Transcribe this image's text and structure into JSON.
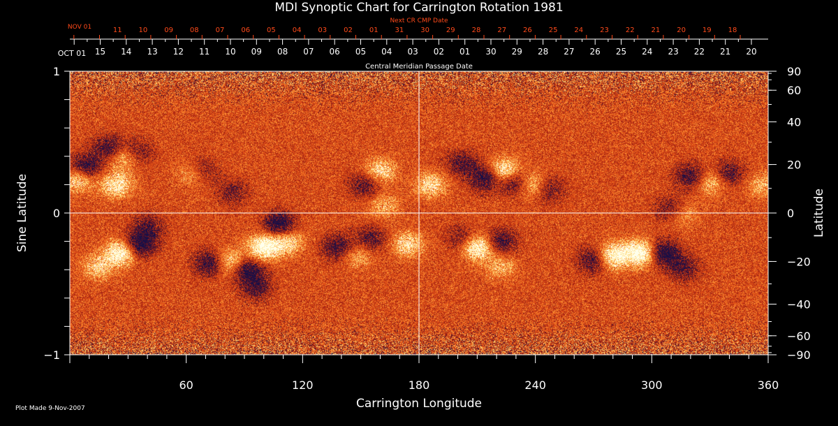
{
  "chart_data": {
    "type": "heatmap",
    "title": "MDI Synoptic Chart for Carrington Rotation 1981",
    "xlabel": "Carrington Longitude",
    "ylabel_left": "Sine Latitude",
    "ylabel_right": "Latitude",
    "xlim": [
      0,
      360
    ],
    "ylim": [
      -1,
      1
    ],
    "x_ticks": [
      "60",
      "120",
      "180",
      "240",
      "300",
      "360"
    ],
    "x_tick_values": [
      60,
      120,
      180,
      240,
      300,
      360
    ],
    "y_left_ticks": [
      "1",
      "0",
      "−1"
    ],
    "y_left_tick_values": [
      1,
      0,
      -1
    ],
    "y_right_ticks": [
      "90",
      "60",
      "40",
      "20",
      "0",
      "−20",
      "−40",
      "−60",
      "−90"
    ],
    "y_right_tick_values": [
      90,
      60,
      40,
      20,
      0,
      -20,
      -40,
      -60,
      -90
    ],
    "cmp_axis_label": "Central Meridian Passage Date",
    "cmp_dates": [
      "OCT 01",
      "15",
      "14",
      "13",
      "12",
      "11",
      "10",
      "09",
      "08",
      "07",
      "06",
      "05",
      "04",
      "03",
      "02",
      "01",
      "30",
      "29",
      "28",
      "27",
      "26",
      "25",
      "24",
      "23",
      "22",
      "21",
      "20"
    ],
    "next_cr_label": "Next CR CMP Date",
    "next_cr_dates": [
      "NOV 01",
      "11",
      "10",
      "09",
      "08",
      "07",
      "06",
      "05",
      "04",
      "03",
      "02",
      "01",
      "31",
      "30",
      "29",
      "28",
      "27",
      "26",
      "25",
      "24",
      "23",
      "22",
      "21",
      "20",
      "19",
      "18"
    ],
    "crosshair": {
      "longitude": 180,
      "sine_latitude": 0
    },
    "colors": {
      "background": "#000000",
      "field_base": "#e0501a",
      "positive": "#ffffff",
      "negative": "#14103a",
      "accent_next_cr": "#ff4a1a",
      "axis": "#ffffff"
    },
    "active_regions": [
      {
        "polarity": "positive",
        "lon": 4,
        "sinlat": 0.24,
        "strength": 0.6
      },
      {
        "polarity": "negative",
        "lon": 8,
        "sinlat": 0.33,
        "strength": 0.7
      },
      {
        "polarity": "negative",
        "lon": 20,
        "sinlat": 0.46,
        "strength": 0.6
      },
      {
        "polarity": "positive",
        "lon": 28,
        "sinlat": 0.4,
        "strength": 0.6
      },
      {
        "polarity": "positive",
        "lon": 24,
        "sinlat": 0.2,
        "strength": 0.7
      },
      {
        "polarity": "negative",
        "lon": 34,
        "sinlat": 0.43,
        "strength": 0.5
      },
      {
        "polarity": "positive",
        "lon": 26,
        "sinlat": -0.28,
        "strength": 0.9
      },
      {
        "polarity": "positive",
        "lon": 14,
        "sinlat": -0.38,
        "strength": 0.5
      },
      {
        "polarity": "negative",
        "lon": 36,
        "sinlat": -0.22,
        "strength": 0.8
      },
      {
        "polarity": "negative",
        "lon": 40,
        "sinlat": -0.1,
        "strength": 0.5
      },
      {
        "polarity": "positive",
        "lon": 63,
        "sinlat": 0.28,
        "strength": 0.4
      },
      {
        "polarity": "negative",
        "lon": 68,
        "sinlat": 0.3,
        "strength": 0.4
      },
      {
        "polarity": "negative",
        "lon": 84,
        "sinlat": 0.15,
        "strength": 0.4
      },
      {
        "polarity": "negative",
        "lon": 72,
        "sinlat": -0.35,
        "strength": 0.7
      },
      {
        "polarity": "positive",
        "lon": 82,
        "sinlat": -0.34,
        "strength": 0.6
      },
      {
        "polarity": "negative",
        "lon": 92,
        "sinlat": -0.4,
        "strength": 0.7
      },
      {
        "polarity": "positive",
        "lon": 100,
        "sinlat": -0.24,
        "strength": 1.0
      },
      {
        "polarity": "positive",
        "lon": 112,
        "sinlat": -0.2,
        "strength": 0.6
      },
      {
        "polarity": "negative",
        "lon": 108,
        "sinlat": -0.08,
        "strength": 0.8
      },
      {
        "polarity": "negative",
        "lon": 96,
        "sinlat": -0.52,
        "strength": 0.5
      },
      {
        "polarity": "negative",
        "lon": 138,
        "sinlat": -0.24,
        "strength": 0.6
      },
      {
        "polarity": "positive",
        "lon": 148,
        "sinlat": -0.3,
        "strength": 0.4
      },
      {
        "polarity": "negative",
        "lon": 155,
        "sinlat": -0.18,
        "strength": 0.5
      },
      {
        "polarity": "positive",
        "lon": 160,
        "sinlat": 0.3,
        "strength": 0.6
      },
      {
        "polarity": "negative",
        "lon": 152,
        "sinlat": 0.2,
        "strength": 0.5
      },
      {
        "polarity": "positive",
        "lon": 162,
        "sinlat": 0.05,
        "strength": 0.4
      },
      {
        "polarity": "positive",
        "lon": 174,
        "sinlat": -0.22,
        "strength": 0.6
      },
      {
        "polarity": "positive",
        "lon": 186,
        "sinlat": 0.2,
        "strength": 0.6
      },
      {
        "polarity": "negative",
        "lon": 202,
        "sinlat": 0.35,
        "strength": 0.5
      },
      {
        "polarity": "negative",
        "lon": 214,
        "sinlat": 0.25,
        "strength": 0.7
      },
      {
        "polarity": "positive",
        "lon": 224,
        "sinlat": 0.3,
        "strength": 0.8
      },
      {
        "polarity": "positive",
        "lon": 238,
        "sinlat": 0.2,
        "strength": 0.7
      },
      {
        "polarity": "negative",
        "lon": 230,
        "sinlat": 0.22,
        "strength": 0.7
      },
      {
        "polarity": "negative",
        "lon": 246,
        "sinlat": 0.17,
        "strength": 0.5
      },
      {
        "polarity": "positive",
        "lon": 210,
        "sinlat": -0.24,
        "strength": 0.9
      },
      {
        "polarity": "negative",
        "lon": 222,
        "sinlat": -0.2,
        "strength": 0.6
      },
      {
        "polarity": "positive",
        "lon": 222,
        "sinlat": -0.38,
        "strength": 0.4
      },
      {
        "polarity": "negative",
        "lon": 202,
        "sinlat": -0.18,
        "strength": 0.4
      },
      {
        "polarity": "negative",
        "lon": 270,
        "sinlat": -0.33,
        "strength": 0.6
      },
      {
        "polarity": "positive",
        "lon": 280,
        "sinlat": -0.3,
        "strength": 0.9
      },
      {
        "polarity": "positive",
        "lon": 294,
        "sinlat": -0.28,
        "strength": 1.0
      },
      {
        "polarity": "negative",
        "lon": 306,
        "sinlat": -0.28,
        "strength": 0.8
      },
      {
        "polarity": "negative",
        "lon": 316,
        "sinlat": -0.38,
        "strength": 0.5
      },
      {
        "polarity": "negative",
        "lon": 310,
        "sinlat": 0.03,
        "strength": 0.5
      },
      {
        "polarity": "positive",
        "lon": 315,
        "sinlat": 0.0,
        "strength": 0.4
      },
      {
        "polarity": "negative",
        "lon": 320,
        "sinlat": 0.26,
        "strength": 0.6
      },
      {
        "polarity": "positive",
        "lon": 330,
        "sinlat": 0.22,
        "strength": 0.5
      },
      {
        "polarity": "negative",
        "lon": 340,
        "sinlat": 0.28,
        "strength": 0.5
      },
      {
        "polarity": "positive",
        "lon": 357,
        "sinlat": 0.2,
        "strength": 0.4
      }
    ]
  },
  "footer": {
    "plot_made": "Plot Made  9-Nov-2007"
  }
}
